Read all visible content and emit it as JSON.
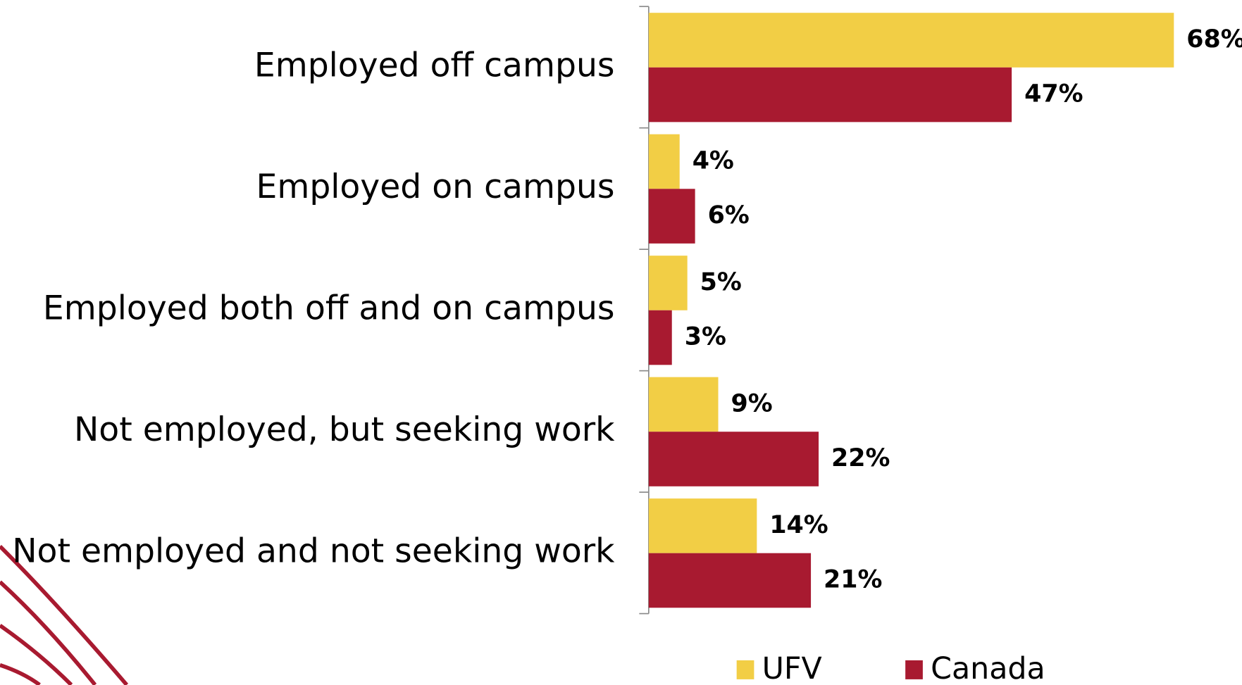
{
  "chart_data": {
    "type": "bar",
    "orientation": "horizontal",
    "categories": [
      "Employed off campus",
      "Employed on campus",
      "Employed both off and on campus",
      "Not employed, but seeking work",
      "Not employed and not seeking work"
    ],
    "series": [
      {
        "name": "UFV",
        "color": "#f2ce45",
        "values": [
          68,
          4,
          5,
          9,
          14
        ],
        "value_labels": [
          "68%",
          "4%",
          "5%",
          "9%",
          "14%"
        ]
      },
      {
        "name": "Canada",
        "color": "#a81a30",
        "values": [
          47,
          6,
          3,
          22,
          21
        ],
        "value_labels": [
          "47%",
          "6%",
          "3%",
          "22%",
          "21%"
        ]
      }
    ],
    "legend": "bottom"
  }
}
